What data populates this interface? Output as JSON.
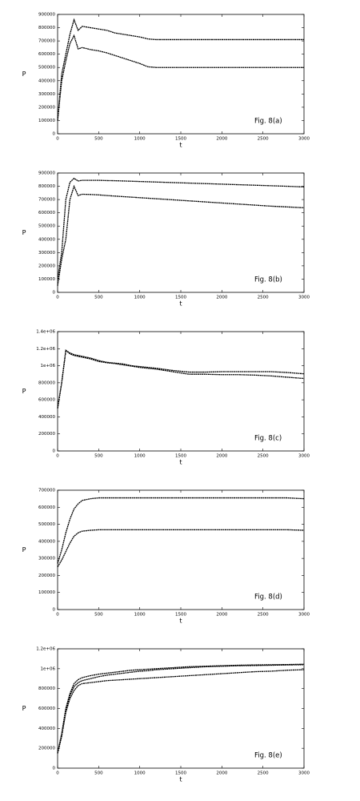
{
  "chart_data": [
    {
      "type": "line",
      "annotation": "Fig. 8(a)",
      "x_label": "t",
      "y_label": "P",
      "x": [
        0,
        50,
        100,
        150,
        200,
        250,
        300,
        400,
        500,
        600,
        700,
        800,
        900,
        1000,
        1100,
        1200,
        1400,
        1600,
        1800,
        2000,
        2200,
        2400,
        2600,
        2800,
        3000
      ],
      "xlim": [
        0,
        3000
      ],
      "xticks": [
        0,
        500,
        1000,
        1500,
        2000,
        2500,
        3000
      ],
      "ylim": [
        0,
        900000
      ],
      "yticks": [
        0,
        100000,
        200000,
        300000,
        400000,
        500000,
        600000,
        700000,
        800000,
        900000
      ],
      "series": [
        {
          "color": "#000000",
          "values": [
            100000,
            450000,
            600000,
            750000,
            860000,
            780000,
            810000,
            800000,
            790000,
            780000,
            760000,
            750000,
            740000,
            730000,
            715000,
            710000,
            710000,
            710000,
            710000,
            710000,
            710000,
            710000,
            710000,
            710000,
            710000
          ]
        },
        {
          "color": "#000000",
          "values": [
            100000,
            400000,
            550000,
            680000,
            740000,
            640000,
            650000,
            635000,
            625000,
            610000,
            590000,
            570000,
            550000,
            530000,
            505000,
            500000,
            500000,
            500000,
            500000,
            500000,
            500000,
            500000,
            500000,
            500000,
            500000
          ]
        }
      ]
    },
    {
      "type": "line",
      "annotation": "Fig. 8(b)",
      "x_label": "t",
      "y_label": "P",
      "x": [
        0,
        50,
        100,
        150,
        200,
        250,
        300,
        400,
        500,
        600,
        700,
        800,
        900,
        1000,
        1100,
        1200,
        1400,
        1600,
        1800,
        2000,
        2200,
        2400,
        2600,
        2800,
        3000
      ],
      "xlim": [
        0,
        3000
      ],
      "xticks": [
        0,
        500,
        1000,
        1500,
        2000,
        2500,
        3000
      ],
      "ylim": [
        0,
        900000
      ],
      "yticks": [
        0,
        100000,
        200000,
        300000,
        400000,
        500000,
        600000,
        700000,
        800000,
        900000
      ],
      "series": [
        {
          "color": "#000000",
          "values": [
            100000,
            300000,
            700000,
            830000,
            860000,
            840000,
            845000,
            845000,
            845000,
            843000,
            842000,
            840000,
            838000,
            836000,
            834000,
            832000,
            828000,
            824000,
            820000,
            816000,
            812000,
            808000,
            804000,
            800000,
            795000
          ]
        },
        {
          "color": "#000000",
          "values": [
            50000,
            250000,
            400000,
            700000,
            800000,
            730000,
            740000,
            738000,
            735000,
            730000,
            726000,
            722000,
            718000,
            714000,
            710000,
            706000,
            698000,
            690000,
            682000,
            674000,
            666000,
            658000,
            650000,
            644000,
            638000
          ]
        }
      ]
    },
    {
      "type": "line",
      "annotation": "Fig. 8(c)",
      "x_label": "t",
      "y_label": "P",
      "x": [
        0,
        50,
        100,
        150,
        200,
        250,
        300,
        400,
        500,
        600,
        700,
        800,
        900,
        1000,
        1100,
        1200,
        1400,
        1600,
        1800,
        2000,
        2200,
        2400,
        2600,
        2800,
        3000
      ],
      "xlim": [
        0,
        3000
      ],
      "xticks": [
        0,
        500,
        1000,
        1500,
        2000,
        2500,
        3000
      ],
      "ylim": [
        0,
        1400000
      ],
      "yticks": [
        0,
        200000,
        400000,
        600000,
        800000,
        {
          "value": 1000000,
          "label": "1e+06"
        },
        {
          "value": 1200000,
          "label": "1.2e+06"
        },
        {
          "value": 1400000,
          "label": "1.4e+06"
        }
      ],
      "series": [
        {
          "color": "#000000",
          "values": [
            500000,
            800000,
            1180000,
            1150000,
            1130000,
            1120000,
            1110000,
            1090000,
            1060000,
            1040000,
            1030000,
            1020000,
            1000000,
            990000,
            980000,
            970000,
            945000,
            925000,
            925000,
            930000,
            930000,
            930000,
            930000,
            920000,
            905000
          ]
        },
        {
          "color": "#000000",
          "values": [
            500000,
            800000,
            1180000,
            1140000,
            1120000,
            1110000,
            1100000,
            1080000,
            1050000,
            1035000,
            1025000,
            1010000,
            995000,
            980000,
            970000,
            960000,
            930000,
            900000,
            900000,
            895000,
            895000,
            890000,
            880000,
            865000,
            850000
          ]
        }
      ]
    },
    {
      "type": "line",
      "annotation": "Fig. 8(d)",
      "x_label": "t",
      "y_label": "P",
      "x": [
        0,
        50,
        100,
        150,
        200,
        250,
        300,
        400,
        500,
        600,
        700,
        800,
        900,
        1000,
        1100,
        1200,
        1400,
        1600,
        1800,
        2000,
        2200,
        2400,
        2600,
        2800,
        3000
      ],
      "xlim": [
        0,
        3000
      ],
      "xticks": [
        0,
        500,
        1000,
        1500,
        2000,
        2500,
        3000
      ],
      "ylim": [
        0,
        700000
      ],
      "yticks": [
        0,
        100000,
        200000,
        300000,
        400000,
        500000,
        600000,
        700000
      ],
      "series": [
        {
          "color": "#000000",
          "values": [
            270000,
            350000,
            450000,
            530000,
            590000,
            620000,
            640000,
            650000,
            655000,
            655000,
            655000,
            655000,
            655000,
            655000,
            655000,
            655000,
            655000,
            655000,
            655000,
            655000,
            655000,
            655000,
            655000,
            655000,
            650000
          ]
        },
        {
          "color": "#000000",
          "values": [
            250000,
            290000,
            340000,
            390000,
            430000,
            450000,
            460000,
            465000,
            468000,
            468000,
            468000,
            468000,
            468000,
            468000,
            468000,
            468000,
            468000,
            468000,
            468000,
            468000,
            468000,
            468000,
            468000,
            468000,
            465000
          ]
        }
      ]
    },
    {
      "type": "line",
      "annotation": "Fig. 8(e)",
      "x_label": "t",
      "y_label": "P",
      "x": [
        0,
        50,
        100,
        150,
        200,
        250,
        300,
        400,
        500,
        600,
        700,
        800,
        900,
        1000,
        1100,
        1200,
        1400,
        1600,
        1800,
        2000,
        2200,
        2400,
        2600,
        2800,
        3000
      ],
      "xlim": [
        0,
        3000
      ],
      "xticks": [
        0,
        500,
        1000,
        1500,
        2000,
        2500,
        3000
      ],
      "ylim": [
        0,
        1200000
      ],
      "yticks": [
        0,
        200000,
        400000,
        600000,
        800000,
        {
          "value": 1000000,
          "label": "1e+06"
        },
        {
          "value": 1200000,
          "label": "1.2e+06"
        }
      ],
      "series": [
        {
          "color": "#000000",
          "values": [
            150000,
            350000,
            600000,
            750000,
            850000,
            890000,
            910000,
            930000,
            945000,
            955000,
            965000,
            975000,
            985000,
            990000,
            995000,
            1000000,
            1010000,
            1020000,
            1025000,
            1030000,
            1035000,
            1038000,
            1040000,
            1042000,
            1045000
          ]
        },
        {
          "color": "#000000",
          "values": [
            150000,
            330000,
            580000,
            730000,
            820000,
            860000,
            880000,
            900000,
            920000,
            935000,
            945000,
            955000,
            965000,
            975000,
            980000,
            990000,
            1000000,
            1010000,
            1020000,
            1025000,
            1030000,
            1032000,
            1035000,
            1038000,
            1040000
          ]
        },
        {
          "color": "#000000",
          "values": [
            150000,
            320000,
            560000,
            700000,
            780000,
            830000,
            850000,
            860000,
            870000,
            880000,
            885000,
            890000,
            895000,
            900000,
            905000,
            910000,
            920000,
            930000,
            940000,
            950000,
            960000,
            970000,
            975000,
            985000,
            990000
          ]
        }
      ]
    }
  ]
}
